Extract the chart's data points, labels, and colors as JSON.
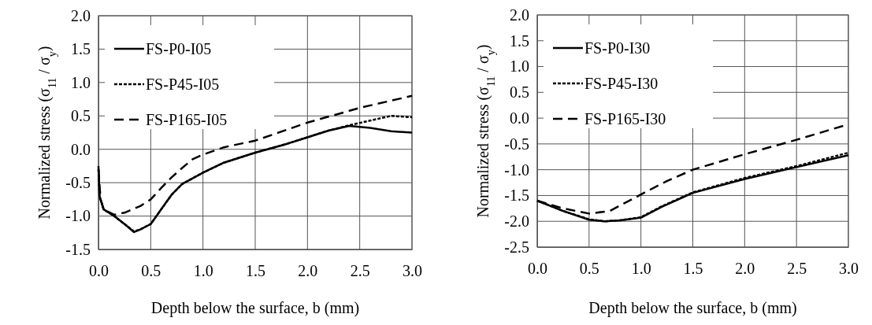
{
  "chart_data": [
    {
      "type": "line",
      "xlabel": "Depth below the surface, b (mm)",
      "ylabel": "Normalized stress (σ$_{11}$ / σ$_{y}$)",
      "xlim": [
        0,
        3
      ],
      "ylim": [
        -1.5,
        2
      ],
      "xticks": [
        {
          "value": 0,
          "label": "0.0"
        },
        {
          "value": 0.5,
          "label": "0.5"
        },
        {
          "value": 1,
          "label": "1.0"
        },
        {
          "value": 1.5,
          "label": "1.5"
        },
        {
          "value": 2,
          "label": "2.0"
        },
        {
          "value": 2.5,
          "label": "2.5"
        },
        {
          "value": 3,
          "label": "3.0"
        }
      ],
      "yticks": [
        {
          "value": -1.5,
          "label": "-1.5"
        },
        {
          "value": -1,
          "label": "-1.0"
        },
        {
          "value": -0.5,
          "label": "-0.5"
        },
        {
          "value": 0,
          "label": "0.0"
        },
        {
          "value": 0.5,
          "label": "0.5"
        },
        {
          "value": 1,
          "label": "1.0"
        },
        {
          "value": 1.5,
          "label": "1.5"
        },
        {
          "value": 2,
          "label": "2.0"
        }
      ],
      "grid": true,
      "legend": "top left",
      "marker": "none",
      "series": [
        {
          "name": "FS-P0-I05",
          "color": "#000000",
          "line_style": "solid",
          "x": [
            0,
            0.01,
            0.05,
            0.15,
            0.25,
            0.34,
            0.4,
            0.5,
            0.6,
            0.7,
            0.8,
            1.0,
            1.2,
            1.5,
            1.8,
            2.0,
            2.2,
            2.4,
            2.6,
            2.8,
            3.0
          ],
          "values": [
            -0.25,
            -0.7,
            -0.9,
            -1.0,
            -1.12,
            -1.24,
            -1.2,
            -1.12,
            -0.9,
            -0.68,
            -0.52,
            -0.35,
            -0.2,
            -0.05,
            0.08,
            0.18,
            0.28,
            0.35,
            0.32,
            0.27,
            0.25
          ]
        },
        {
          "name": "FS-P45-I05",
          "color": "#000000",
          "line_style": "dotted",
          "x": [
            0,
            0.01,
            0.05,
            0.15,
            0.25,
            0.34,
            0.4,
            0.5,
            0.6,
            0.7,
            0.8,
            1.0,
            1.2,
            1.5,
            1.8,
            2.0,
            2.2,
            2.4,
            2.6,
            2.8,
            3.0
          ],
          "values": [
            -0.3,
            -0.7,
            -0.9,
            -1.0,
            -1.12,
            -1.23,
            -1.2,
            -1.12,
            -0.9,
            -0.68,
            -0.52,
            -0.35,
            -0.2,
            -0.05,
            0.08,
            0.18,
            0.28,
            0.36,
            0.43,
            0.5,
            0.48
          ]
        },
        {
          "name": "FS-P165-I05",
          "color": "#000000",
          "line_style": "dashed",
          "x": [
            0,
            0.02,
            0.05,
            0.15,
            0.25,
            0.4,
            0.5,
            0.6,
            0.7,
            0.8,
            0.9,
            1.0,
            1.2,
            1.5,
            2.0,
            2.5,
            3.0
          ],
          "values": [
            -0.3,
            -0.75,
            -0.9,
            -0.98,
            -0.95,
            -0.85,
            -0.75,
            -0.58,
            -0.42,
            -0.28,
            -0.15,
            -0.08,
            0.03,
            0.13,
            0.4,
            0.62,
            0.8
          ]
        }
      ]
    },
    {
      "type": "line",
      "xlabel": "Depth below the surface, b (mm)",
      "ylabel": "Normalized stress (σ$_{11}$ / σ$_{y}$)",
      "xlim": [
        0,
        3
      ],
      "ylim": [
        -2.5,
        2
      ],
      "xticks": [
        {
          "value": 0,
          "label": "0.0"
        },
        {
          "value": 0.5,
          "label": "0.5"
        },
        {
          "value": 1,
          "label": "1.0"
        },
        {
          "value": 1.5,
          "label": "1.5"
        },
        {
          "value": 2,
          "label": "2.0"
        },
        {
          "value": 2.5,
          "label": "2.5"
        },
        {
          "value": 3,
          "label": "3.0"
        }
      ],
      "yticks": [
        {
          "value": -2.5,
          "label": "-2.5"
        },
        {
          "value": -2,
          "label": "-2.0"
        },
        {
          "value": -1.5,
          "label": "-1.5"
        },
        {
          "value": -1,
          "label": "-1.0"
        },
        {
          "value": -0.5,
          "label": "-0.5"
        },
        {
          "value": 0,
          "label": "0.0"
        },
        {
          "value": 0.5,
          "label": "0.5"
        },
        {
          "value": 1,
          "label": "1.0"
        },
        {
          "value": 1.5,
          "label": "1.5"
        },
        {
          "value": 2,
          "label": "2.0"
        }
      ],
      "grid": true,
      "legend": "top left",
      "marker": "none",
      "series": [
        {
          "name": "FS-P0-I30",
          "color": "#000000",
          "line_style": "solid",
          "x": [
            0,
            0.25,
            0.5,
            0.65,
            0.8,
            1.0,
            1.2,
            1.5,
            2.0,
            2.5,
            3.0
          ],
          "values": [
            -1.6,
            -1.8,
            -1.97,
            -2.0,
            -1.98,
            -1.93,
            -1.72,
            -1.45,
            -1.18,
            -0.95,
            -0.72
          ]
        },
        {
          "name": "FS-P45-I30",
          "color": "#000000",
          "line_style": "dotted",
          "x": [
            0,
            0.25,
            0.5,
            0.65,
            0.8,
            1.0,
            1.2,
            1.5,
            2.0,
            2.5,
            3.0
          ],
          "values": [
            -1.6,
            -1.8,
            -1.96,
            -2.0,
            -1.98,
            -1.92,
            -1.71,
            -1.44,
            -1.16,
            -0.93,
            -0.67
          ]
        },
        {
          "name": "FS-P165-I30",
          "color": "#000000",
          "line_style": "dashed",
          "x": [
            0,
            0.25,
            0.5,
            0.7,
            1.0,
            1.25,
            1.5,
            2.0,
            2.5,
            3.0
          ],
          "values": [
            -1.6,
            -1.75,
            -1.85,
            -1.8,
            -1.48,
            -1.22,
            -1.0,
            -0.7,
            -0.42,
            -0.12
          ]
        }
      ]
    }
  ]
}
